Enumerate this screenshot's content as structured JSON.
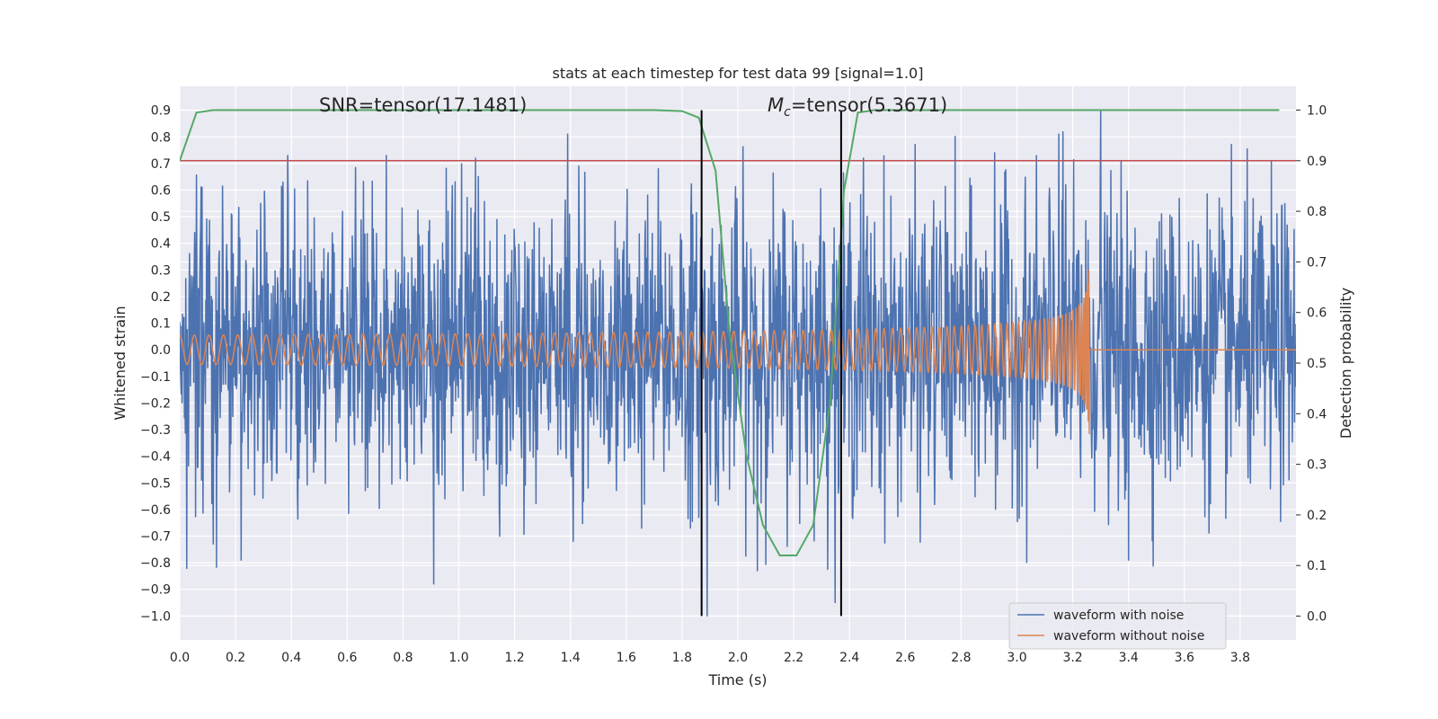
{
  "chart_data": {
    "type": "line",
    "title": "stats at each timestep for test data 99 [signal=1.0]",
    "xlabel": "Time (s)",
    "ylabel": "Whitened strain",
    "y2label": "Detection probability",
    "xlim": [
      0.0,
      4.0
    ],
    "ylim": [
      -1.09,
      0.99
    ],
    "y2lim": [
      -0.047,
      1.047
    ],
    "xticks": [
      "0.0",
      "0.2",
      "0.4",
      "0.6",
      "0.8",
      "1.0",
      "1.2",
      "1.4",
      "1.6",
      "1.8",
      "2.0",
      "2.2",
      "2.4",
      "2.6",
      "2.8",
      "3.0",
      "3.2",
      "3.4",
      "3.6",
      "3.8"
    ],
    "yticks": [
      "0.9",
      "0.8",
      "0.7",
      "0.6",
      "0.5",
      "0.4",
      "0.3",
      "0.2",
      "0.1",
      "0.0",
      "-0.1",
      "-0.2",
      "-0.3",
      "-0.4",
      "-0.5",
      "-0.6",
      "-0.7",
      "-0.8",
      "-0.9",
      "-1.0"
    ],
    "y2ticks": [
      "1.0",
      "0.9",
      "0.8",
      "0.7",
      "0.6",
      "0.5",
      "0.4",
      "0.3",
      "0.2",
      "0.1",
      "0.0"
    ],
    "grid": true,
    "legend_position": "lower-right",
    "series": [
      {
        "name": "waveform with noise",
        "axis": "left",
        "color": "#4c72b0",
        "kind": "noise",
        "sample_rate_hz": 600,
        "typical_amplitude": 0.3,
        "extremes": [
          {
            "x": 0.08,
            "y": 0.61
          },
          {
            "x": 0.12,
            "y": -0.73
          },
          {
            "x": 0.22,
            "y": -0.79
          },
          {
            "x": 0.37,
            "y": 0.63
          },
          {
            "x": 0.74,
            "y": 0.73
          },
          {
            "x": 0.91,
            "y": -0.88
          },
          {
            "x": 1.06,
            "y": 0.72
          },
          {
            "x": 1.39,
            "y": 0.81
          },
          {
            "x": 1.41,
            "y": -0.72
          },
          {
            "x": 1.83,
            "y": -0.67
          },
          {
            "x": 1.89,
            "y": -1.0
          },
          {
            "x": 2.07,
            "y": -0.83
          },
          {
            "x": 2.45,
            "y": 0.72
          },
          {
            "x": 2.92,
            "y": 0.74
          },
          {
            "x": 3.15,
            "y": 0.81
          },
          {
            "x": 3.3,
            "y": 0.9
          },
          {
            "x": 3.4,
            "y": -0.79
          }
        ]
      },
      {
        "name": "waveform without noise",
        "axis": "left",
        "color": "#dd8452",
        "kind": "chirp",
        "merger_time": 3.26,
        "amplitude_start": 0.055,
        "amplitude_peak": 0.42,
        "frequency_start_hz": 19
      },
      {
        "name": "",
        "axis": "right",
        "color": "#55a868",
        "kind": "probability",
        "x": [
          0.0,
          0.06,
          0.12,
          0.2,
          0.4,
          0.6,
          0.8,
          1.0,
          1.2,
          1.4,
          1.6,
          1.7,
          1.8,
          1.86,
          1.92,
          1.97,
          2.03,
          2.09,
          2.15,
          2.21,
          2.27,
          2.33,
          2.38,
          2.43,
          2.49,
          2.6,
          3.0,
          3.5,
          3.94
        ],
        "values": [
          0.9,
          0.995,
          1.0,
          1.0,
          1.0,
          1.0,
          1.0,
          1.0,
          1.0,
          1.0,
          1.0,
          1.0,
          0.998,
          0.985,
          0.88,
          0.56,
          0.32,
          0.18,
          0.12,
          0.12,
          0.18,
          0.42,
          0.84,
          0.995,
          1.0,
          1.0,
          1.0,
          1.0,
          1.0
        ]
      }
    ],
    "threshold_line": {
      "axis": "right",
      "value": 0.9,
      "color": "#c44e52"
    },
    "vertical_lines": [
      {
        "x": 1.87,
        "ymin": -1.0,
        "ymax": 0.9,
        "color": "#000000"
      },
      {
        "x": 2.37,
        "ymin": -1.0,
        "ymax": 0.9,
        "color": "#000000"
      }
    ],
    "annotations": {
      "snr": "SNR=tensor(17.1481)",
      "mc_symbol": "M",
      "mc_subscript": "c",
      "mc_value": "=tensor(5.3671)"
    }
  }
}
